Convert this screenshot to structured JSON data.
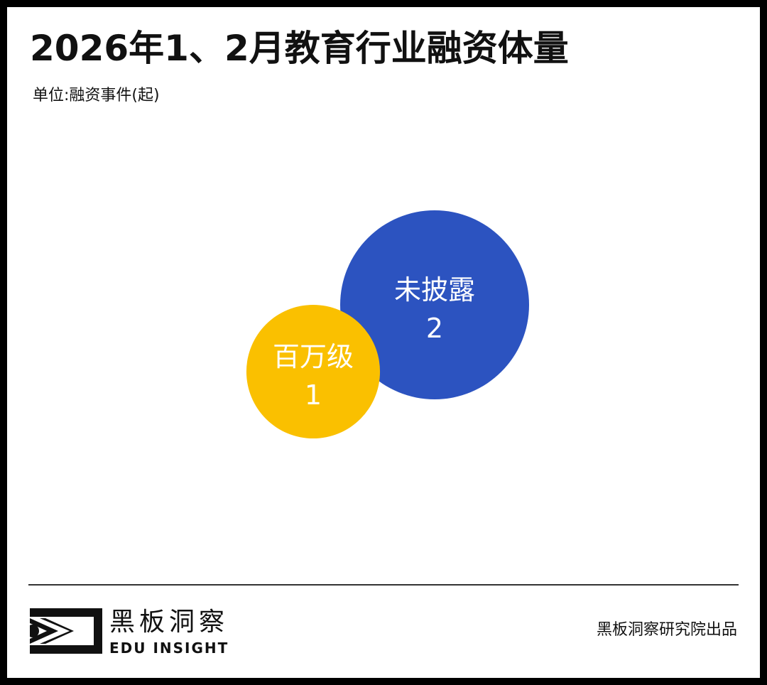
{
  "title": "2026年1、2月教育行业融资体量",
  "unit_label": "单位:融资事件(起)",
  "chart_data": {
    "type": "bubble",
    "title": "2026年1、2月教育行业融资体量",
    "subtitle": "单位:融资事件(起)",
    "categories": [
      "未披露",
      "百万级"
    ],
    "values": [
      2,
      1
    ],
    "colors": [
      "#2C53C0",
      "#FAC000"
    ],
    "grid": false,
    "legend": "none"
  },
  "footer": {
    "brand_cn": "黑板洞察",
    "brand_en": "EDU INSIGHT",
    "credit": "黑板洞察研究院出品"
  }
}
